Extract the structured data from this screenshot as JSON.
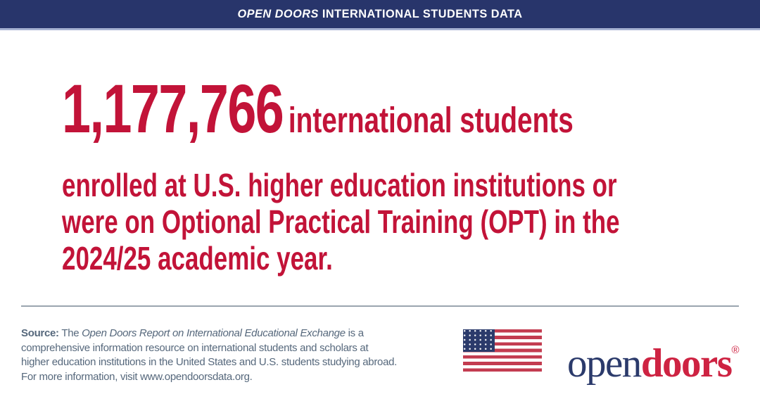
{
  "colors": {
    "header_navy": "#28356B",
    "header_underline": "#A7B2D2",
    "headline_red": "#C21338",
    "source_slate": "#56687C",
    "divider_gray": "#9AA5AF",
    "flag_red": "#C33C50",
    "flag_canton_navy": "#2B3A6B",
    "logo_navy": "#2B3A6B",
    "logo_red": "#CE2342"
  },
  "header": {
    "title_brand": "OPEN DOORS",
    "title_rest": " INTERNATIONAL STUDENTS DATA"
  },
  "headline": {
    "number": "1,177,766",
    "line1_rest": "international students",
    "line2": "enrolled at U.S. higher education institutions or",
    "line3": "were on Optional Practical Training (OPT) in the",
    "line4": "2024/25 academic year."
  },
  "footer": {
    "source_label": "Source:",
    "source_line1_pre": " The ",
    "source_line1_italic": "Open Doors Report on International Educational Exchange",
    "source_line1_post": " is a",
    "source_line2": "comprehensive information resource on international students and scholars at",
    "source_line3": "higher education institutions in the United States and U.S. students studying abroad.",
    "source_line4": "For more information, visit www.opendoorsdata.org.",
    "website": "www.opendoorsdata.org"
  },
  "logo": {
    "part_open": "open",
    "part_doors": "doors",
    "registered_mark": "®"
  },
  "icons": {
    "flag": "us-flag"
  }
}
